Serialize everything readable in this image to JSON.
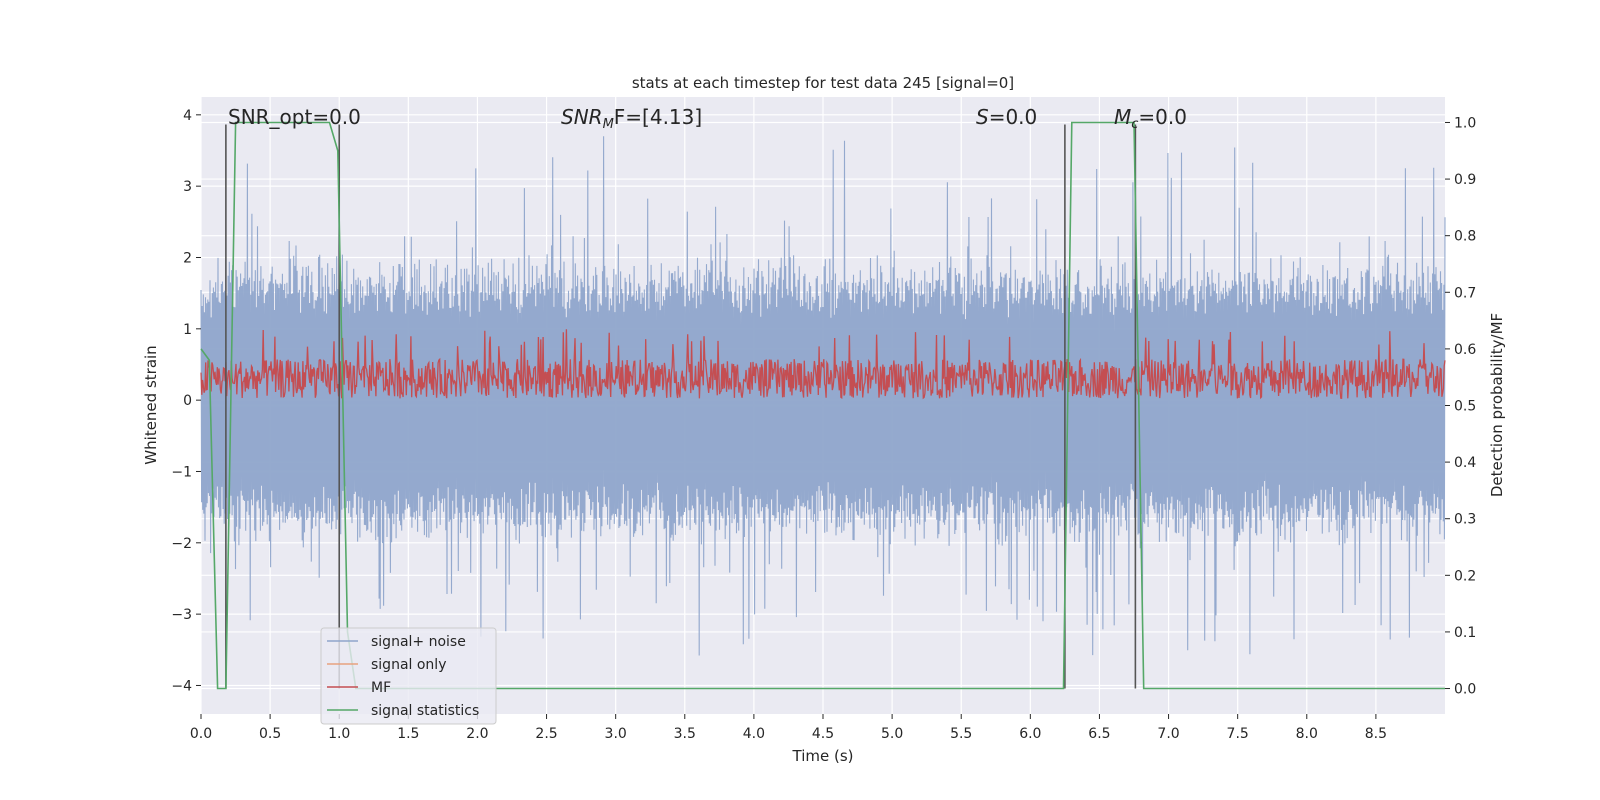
{
  "chart_data": {
    "type": "line",
    "title": "stats at each timestep for test data 245 [signal=0]",
    "xlabel": "Time (s)",
    "ylabel": "Whitened strain",
    "y2label": "Detection probability/MF",
    "xlim": [
      0,
      9.0
    ],
    "ylim": [
      -4.4,
      4.25
    ],
    "y2lim": [
      -0.045,
      1.045
    ],
    "xticks": [
      "0.0",
      "0.5",
      "1.0",
      "1.5",
      "2.0",
      "2.5",
      "3.0",
      "3.5",
      "4.0",
      "4.5",
      "5.0",
      "5.5",
      "6.0",
      "6.5",
      "7.0",
      "7.5",
      "8.0",
      "8.5"
    ],
    "yticks": [
      "−4",
      "−3",
      "−2",
      "−1",
      "0",
      "1",
      "2",
      "3",
      "4"
    ],
    "y2ticks": [
      "0.0",
      "0.1",
      "0.2",
      "0.3",
      "0.4",
      "0.5",
      "0.6",
      "0.7",
      "0.8",
      "0.9",
      "1.0"
    ],
    "grid": true,
    "legend_placement": "lower-left",
    "annotations": {
      "snr_opt": "SNR_opt=0.0",
      "snr_mf_base": "SNR",
      "snr_mf_sub": "M",
      "snr_mf_rest": "F=[4.13]",
      "s_label": "S",
      "s_rest": "=0.0",
      "mc_label": "M",
      "mc_sub": "c",
      "mc_rest": "=0.0"
    },
    "series": [
      {
        "name": "signal+ noise",
        "color": "#8fa5cb",
        "axis": "left",
        "description": "dense whitened strain noise, mostly within ±1.6 with spikes to about ±3.8",
        "envelope": [
          -1.6,
          1.5
        ],
        "peak_range": [
          -3.8,
          3.8
        ]
      },
      {
        "name": "signal only",
        "color": "#e8a17f",
        "axis": "left",
        "values": []
      },
      {
        "name": "MF",
        "color": "#c44e52",
        "axis": "left",
        "description": "matched-filter output around 0.3, band 0.0 to 0.7, spikes to about 1.0",
        "center": 0.3,
        "band": [
          0.0,
          0.7
        ]
      },
      {
        "name": "signal statistics",
        "color": "#55a868",
        "axis": "right",
        "x": [
          0.0,
          0.06,
          0.12,
          0.18,
          0.25,
          0.93,
          0.99,
          1.06,
          1.12,
          6.24,
          6.3,
          6.75,
          6.82,
          9.0
        ],
        "y": [
          0.6,
          0.58,
          0.0,
          0.0,
          1.0,
          1.0,
          0.95,
          0.1,
          0.0,
          0.0,
          1.0,
          1.0,
          0.0,
          0.0
        ]
      }
    ],
    "vertical_markers": {
      "color": "#555555",
      "x": [
        0.18,
        1.0,
        6.25,
        6.76
      ]
    }
  }
}
